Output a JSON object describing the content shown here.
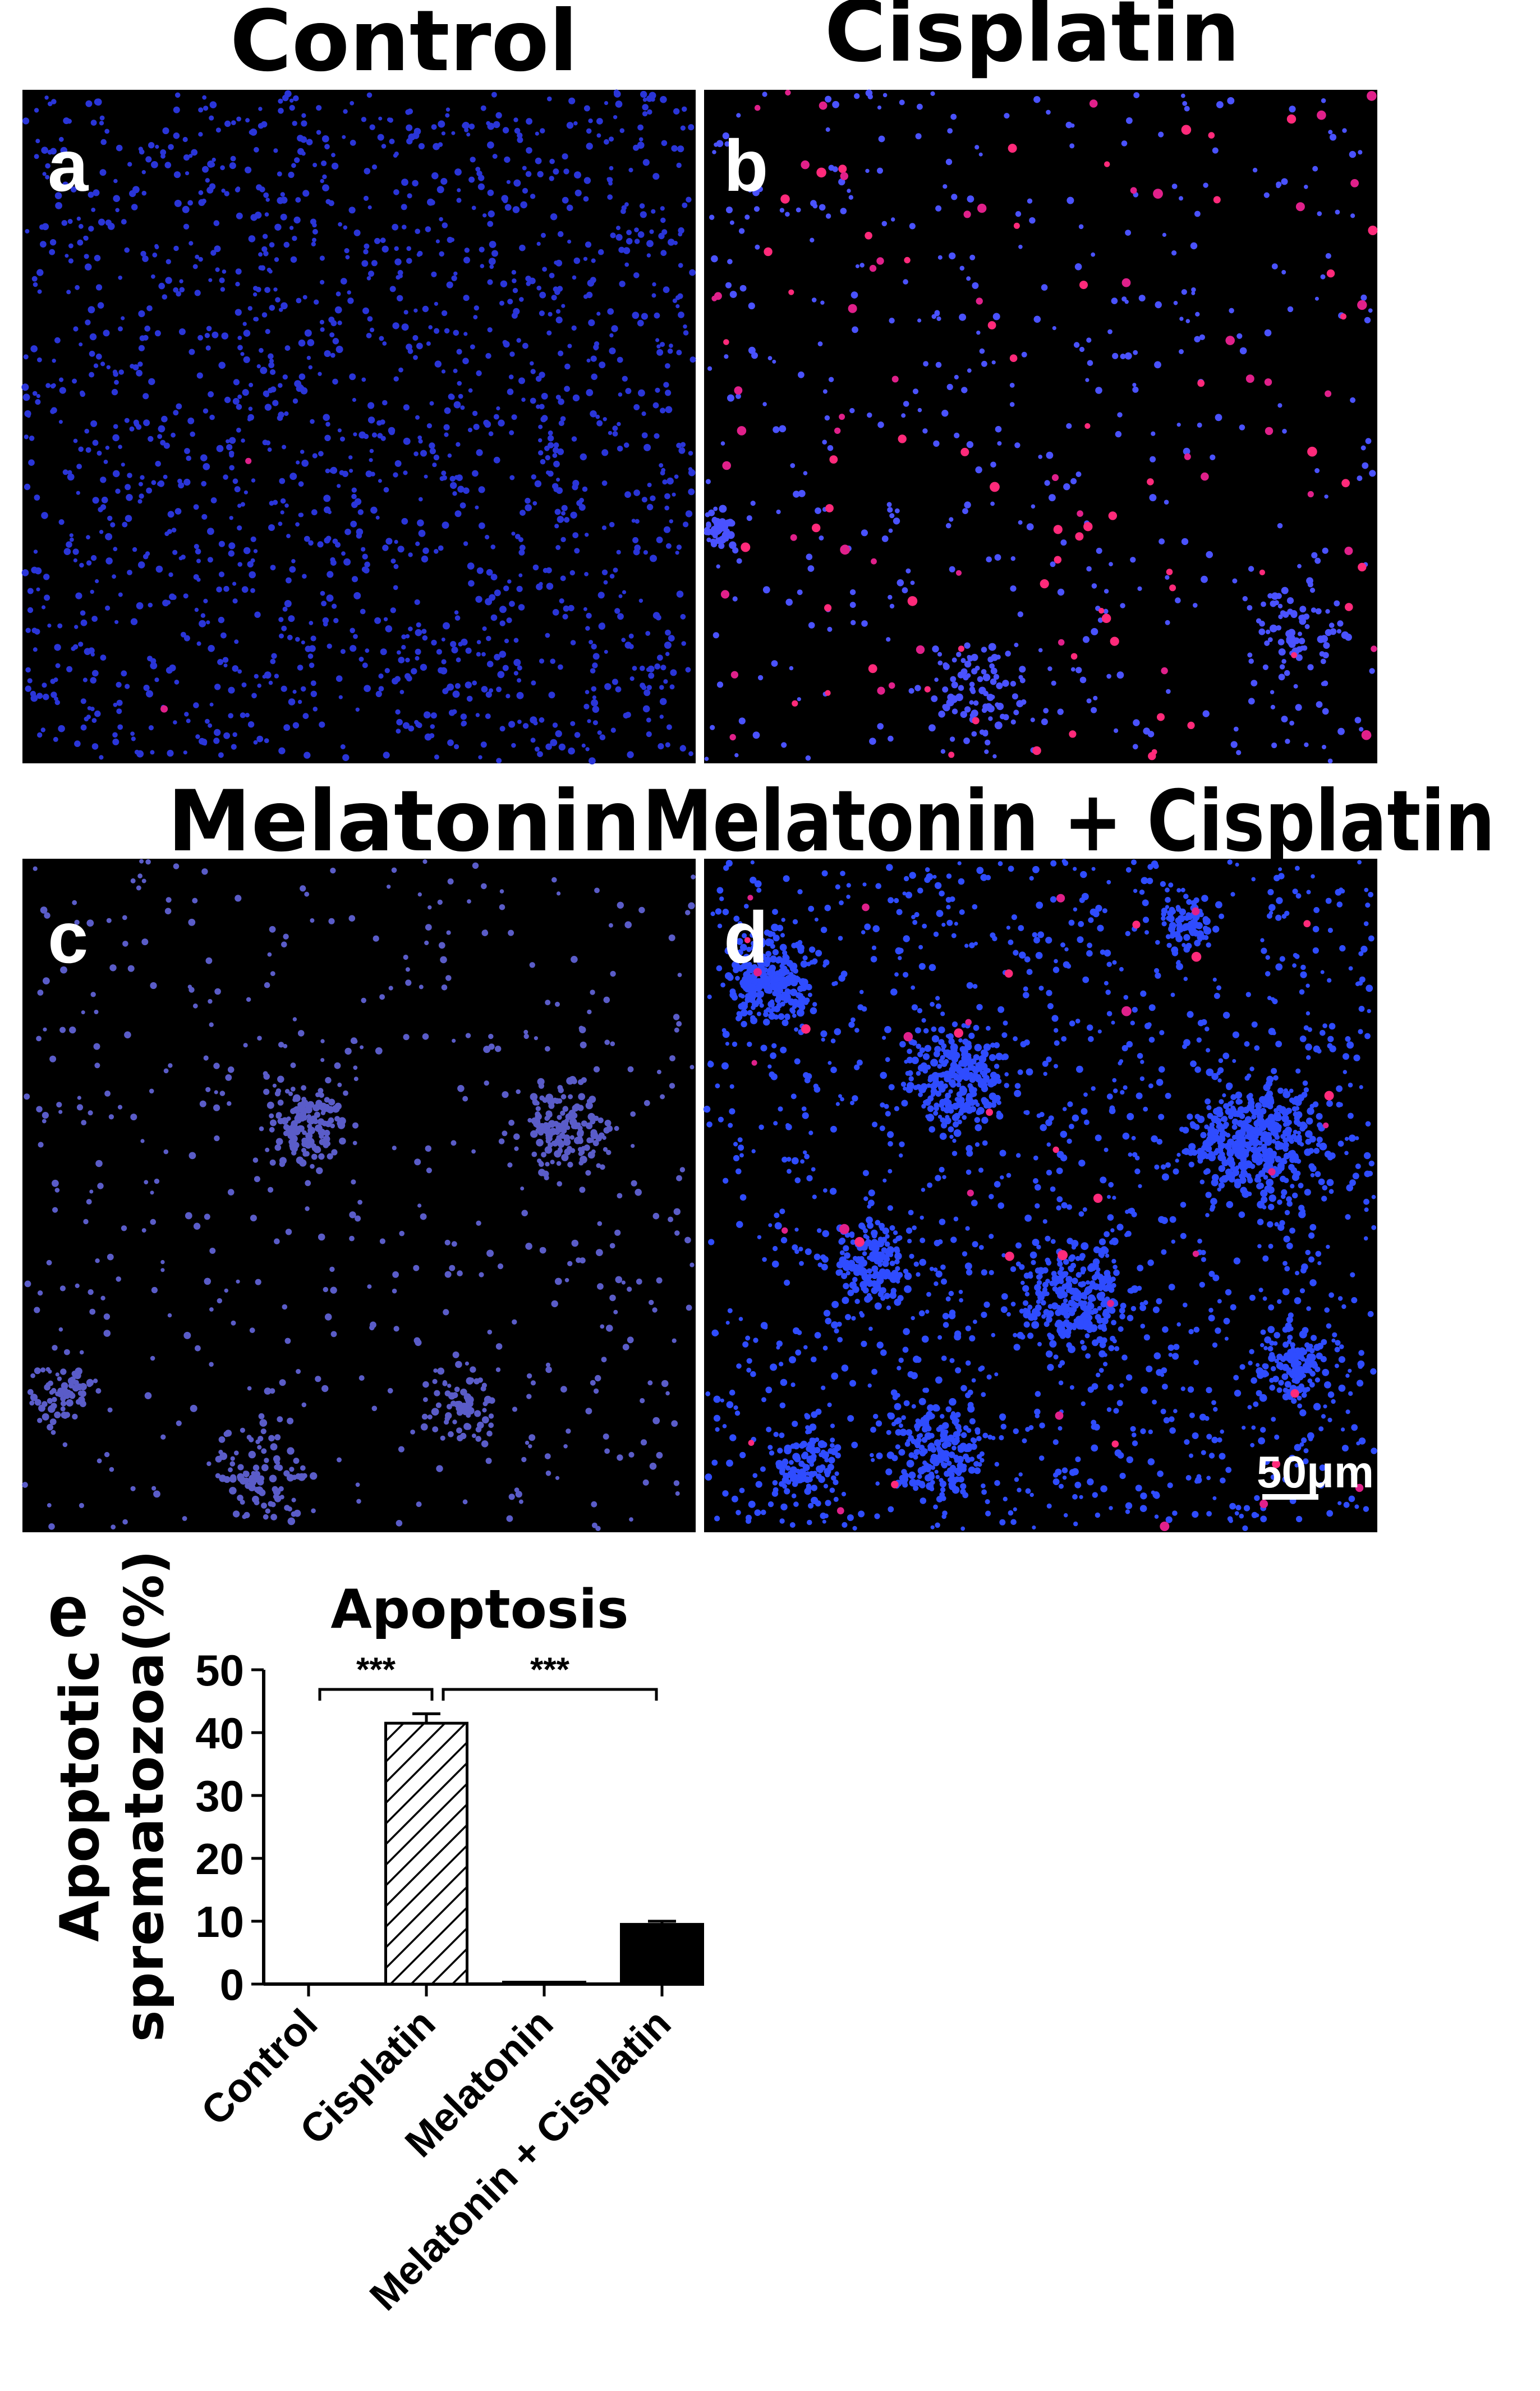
{
  "panels": [
    {
      "letter": "a",
      "title": "Control",
      "blue_density": 1700,
      "red_count": 2,
      "blue": "#2a35d8",
      "clusters": []
    },
    {
      "letter": "b",
      "title": "Cisplatin",
      "blue_density": 450,
      "red_count": 120,
      "blue": "#4a52ff",
      "clusters": [
        [
          0.4,
          0.9,
          0.1,
          80
        ],
        [
          0.88,
          0.8,
          0.1,
          70
        ],
        [
          0.02,
          0.65,
          0.04,
          50
        ]
      ]
    },
    {
      "letter": "c",
      "title": "Melatonin",
      "blue_density": 500,
      "red_count": 0,
      "blue": "#5a5cc8",
      "clusters": [
        [
          0.42,
          0.4,
          0.08,
          130
        ],
        [
          0.8,
          0.4,
          0.1,
          160
        ],
        [
          0.35,
          0.92,
          0.1,
          90
        ],
        [
          0.06,
          0.8,
          0.07,
          60
        ],
        [
          0.65,
          0.82,
          0.08,
          60
        ]
      ]
    },
    {
      "letter": "d",
      "title": "Melatonin + Cisplatin",
      "blue_density": 1400,
      "red_count": 40,
      "blue": "#2f4cff",
      "clusters": [
        [
          0.1,
          0.18,
          0.09,
          260
        ],
        [
          0.38,
          0.33,
          0.1,
          220
        ],
        [
          0.82,
          0.42,
          0.13,
          420
        ],
        [
          0.55,
          0.65,
          0.12,
          260
        ],
        [
          0.25,
          0.6,
          0.09,
          150
        ],
        [
          0.35,
          0.88,
          0.11,
          200
        ],
        [
          0.15,
          0.9,
          0.07,
          110
        ],
        [
          0.72,
          0.1,
          0.05,
          80
        ],
        [
          0.88,
          0.75,
          0.08,
          120
        ]
      ]
    }
  ],
  "scale_bar_label": "50μm",
  "panel_e_letter": "e",
  "chart_data": {
    "type": "bar",
    "title": "Apoptosis",
    "ylabel_line1": "Apoptotic",
    "ylabel_line2": "sprematozoa(%)",
    "categories": [
      "Control",
      "Cisplatin",
      "Melatonin",
      "Melatonin + Cisplatin"
    ],
    "values": [
      0,
      41.5,
      0.3,
      9.5
    ],
    "errors": [
      0,
      1.5,
      0,
      0.5
    ],
    "fills": [
      "none",
      "hatched",
      "none",
      "solid-black"
    ],
    "ylim": [
      0,
      50
    ],
    "yticks": [
      "0",
      "10",
      "20",
      "30",
      "40",
      "50"
    ],
    "significance": [
      {
        "from": 0,
        "to": 1,
        "label": "***"
      },
      {
        "from": 1,
        "to": 3,
        "label": "***"
      }
    ]
  }
}
